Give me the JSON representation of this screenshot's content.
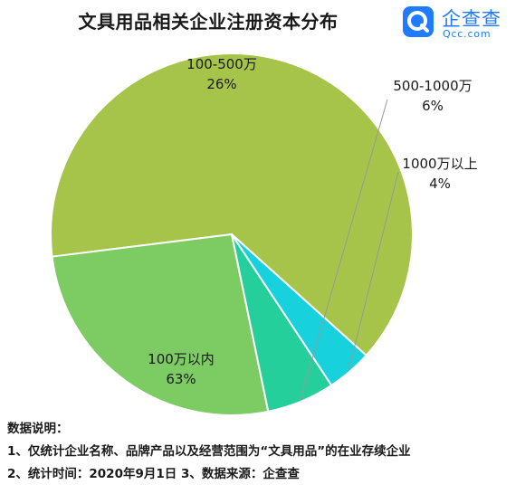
{
  "title": "文具用品相关企业注册资本分布",
  "logo": {
    "cn": "企查查",
    "en": "Qcc.com"
  },
  "colors": {
    "brand": "#1f7bff",
    "slice_1": "#a6c34a",
    "slice_2": "#7ccb63",
    "slice_3": "#24cf9c",
    "slice_4": "#17d1dc"
  },
  "chart_data": {
    "type": "pie",
    "title": "文具用品相关企业注册资本分布",
    "slices": [
      {
        "label": "100万以内",
        "value": 63,
        "value_label": "63%"
      },
      {
        "label": "100-500万",
        "value": 26,
        "value_label": "26%"
      },
      {
        "label": "500-1000万",
        "value": 6,
        "value_label": "6%"
      },
      {
        "label": "1000万以上",
        "value": 4,
        "value_label": "4%"
      }
    ]
  },
  "notes": {
    "heading": "数据说明：",
    "line1": "1、仅统计企业名称、品牌产品以及经营范围为“文具用品”的在业存续企业",
    "line2": "2、统计时间：2020年9月1日 3、数据来源：企查查"
  }
}
